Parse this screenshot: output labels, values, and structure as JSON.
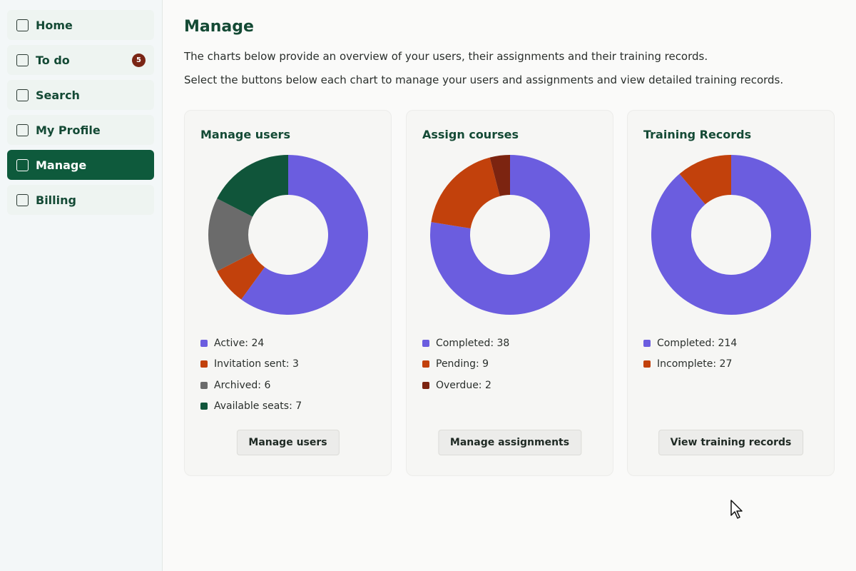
{
  "sidebar": {
    "items": [
      {
        "label": "Home",
        "active": false
      },
      {
        "label": "To do",
        "badge": "5",
        "active": false
      },
      {
        "label": "Search",
        "active": false
      },
      {
        "label": "My Profile",
        "active": false
      },
      {
        "label": "Manage",
        "active": true
      },
      {
        "label": "Billing",
        "active": false
      }
    ]
  },
  "main": {
    "title": "Manage",
    "intro1": "The charts below provide an overview of your users, their assignments and their training records.",
    "intro2": "Select the buttons below each chart to manage your users and assignments and view detailed training records."
  },
  "cards": [
    {
      "title": "Manage users",
      "button": "Manage users",
      "legend": [
        "Active: 24",
        "Invitation sent: 3",
        "Archived: 6",
        "Available seats: 7"
      ]
    },
    {
      "title": "Assign courses",
      "button": "Manage assignments",
      "legend": [
        "Completed: 38",
        "Pending: 9",
        "Overdue: 2"
      ]
    },
    {
      "title": "Training Records",
      "button": "View training records",
      "legend": [
        "Completed: 214",
        "Incomplete: 27"
      ]
    }
  ],
  "chart_data": [
    {
      "type": "pie",
      "title": "Manage users",
      "categories": [
        "Active",
        "Invitation sent",
        "Archived",
        "Available seats"
      ],
      "values": [
        24,
        3,
        6,
        7
      ],
      "colors": [
        "#6b5ddf",
        "#c2410c",
        "#6b6b6b",
        "#10553a"
      ],
      "legend": "bottom"
    },
    {
      "type": "pie",
      "title": "Assign courses",
      "categories": [
        "Completed",
        "Pending",
        "Overdue"
      ],
      "values": [
        38,
        9,
        2
      ],
      "colors": [
        "#6b5ddf",
        "#c2410c",
        "#7c2410"
      ],
      "legend": "bottom"
    },
    {
      "type": "pie",
      "title": "Training Records",
      "categories": [
        "Completed",
        "Incomplete"
      ],
      "values": [
        214,
        27
      ],
      "colors": [
        "#6b5ddf",
        "#c2410c"
      ],
      "legend": "bottom"
    }
  ]
}
